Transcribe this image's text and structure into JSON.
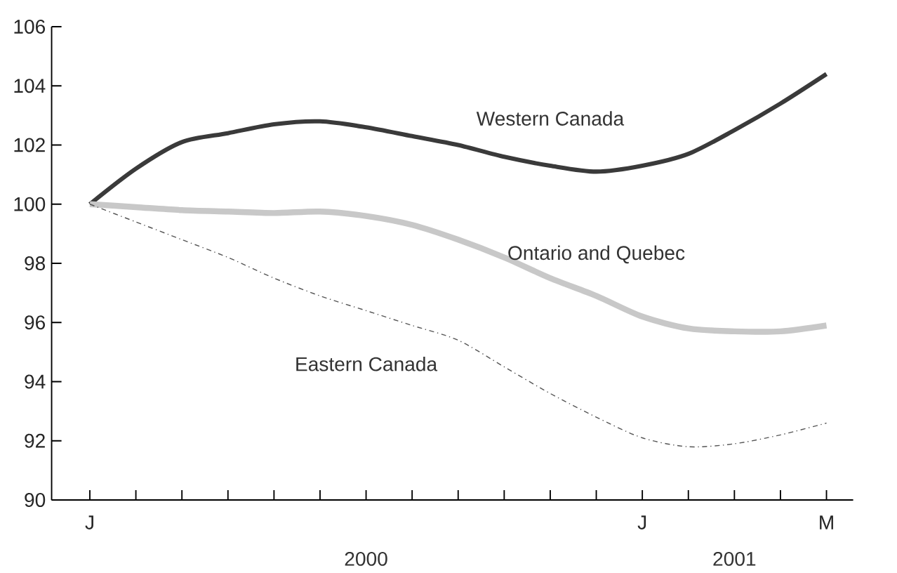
{
  "chart_data": {
    "type": "line",
    "categories": [
      "J",
      null,
      null,
      null,
      null,
      null,
      null,
      null,
      null,
      null,
      null,
      null,
      "J",
      null,
      null,
      null,
      "M"
    ],
    "series": [
      {
        "name": "Western Canada",
        "color": "#3a3a3a",
        "values": [
          100,
          101.2,
          102.1,
          102.4,
          102.7,
          102.8,
          102.6,
          102.3,
          102.0,
          101.6,
          101.3,
          101.1,
          101.3,
          101.7,
          102.5,
          103.4,
          104.4
        ]
      },
      {
        "name": "Ontario and Quebec",
        "color": "#c8c8c8",
        "values": [
          100,
          99.9,
          99.8,
          99.75,
          99.7,
          99.75,
          99.6,
          99.3,
          98.8,
          98.2,
          97.5,
          96.9,
          96.2,
          95.8,
          95.7,
          95.7,
          95.9
        ]
      },
      {
        "name": "Eastern Canada",
        "color": "#555555",
        "line_style": "dashed",
        "values": [
          100,
          99.4,
          98.8,
          98.2,
          97.5,
          96.9,
          96.4,
          95.9,
          95.4,
          94.5,
          93.6,
          92.8,
          92.1,
          91.8,
          91.9,
          92.2,
          92.6
        ]
      }
    ],
    "ylim": [
      90,
      106
    ],
    "yticks": [
      90,
      92,
      94,
      96,
      98,
      100,
      102,
      104,
      106
    ],
    "annotations": [
      "2000",
      "2001"
    ]
  }
}
